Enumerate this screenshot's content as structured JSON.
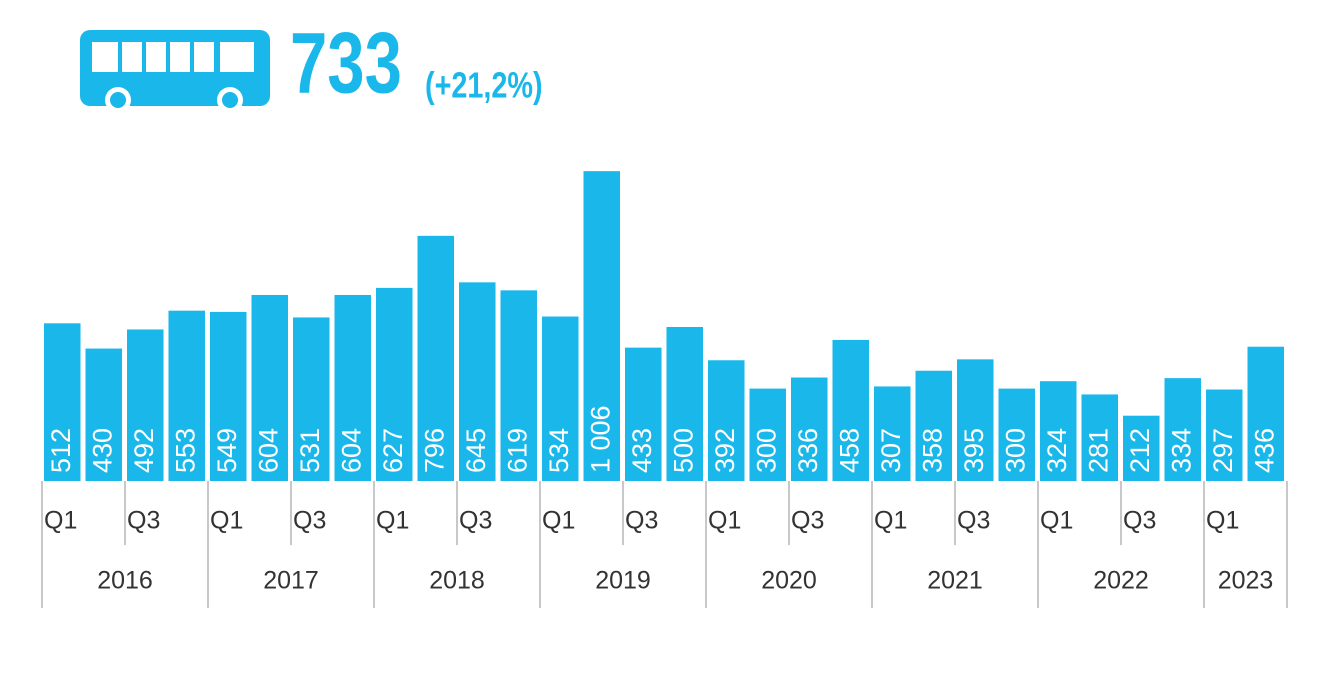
{
  "header": {
    "value": "733",
    "change": "(+21,2%)"
  },
  "chart_data": {
    "type": "bar",
    "color": "#1ab7ea",
    "categories": [
      "Q1",
      null,
      "Q3",
      null,
      "Q1",
      null,
      "Q3",
      null,
      "Q1",
      null,
      "Q3",
      null,
      "Q1",
      null,
      "Q3",
      null,
      "Q1",
      null,
      "Q3",
      null,
      "Q1",
      null,
      "Q3",
      null,
      "Q1",
      null,
      "Q3",
      null,
      "Q1",
      null
    ],
    "years": [
      "2016",
      "2017",
      "2018",
      "2019",
      "2020",
      "2021",
      "2022",
      "2023"
    ],
    "values": [
      512,
      430,
      492,
      553,
      549,
      604,
      531,
      604,
      627,
      796,
      645,
      619,
      534,
      1006,
      433,
      500,
      392,
      300,
      336,
      458,
      307,
      358,
      395,
      300,
      324,
      281,
      212,
      334,
      297,
      436
    ],
    "value_labels": [
      "512",
      "430",
      "492",
      "553",
      "549",
      "604",
      "531",
      "604",
      "627",
      "796",
      "645",
      "619",
      "534",
      "1 006",
      "433",
      "500",
      "392",
      "300",
      "336",
      "458",
      "307",
      "358",
      "395",
      "300",
      "324",
      "281",
      "212",
      "334",
      "297",
      "436"
    ]
  }
}
